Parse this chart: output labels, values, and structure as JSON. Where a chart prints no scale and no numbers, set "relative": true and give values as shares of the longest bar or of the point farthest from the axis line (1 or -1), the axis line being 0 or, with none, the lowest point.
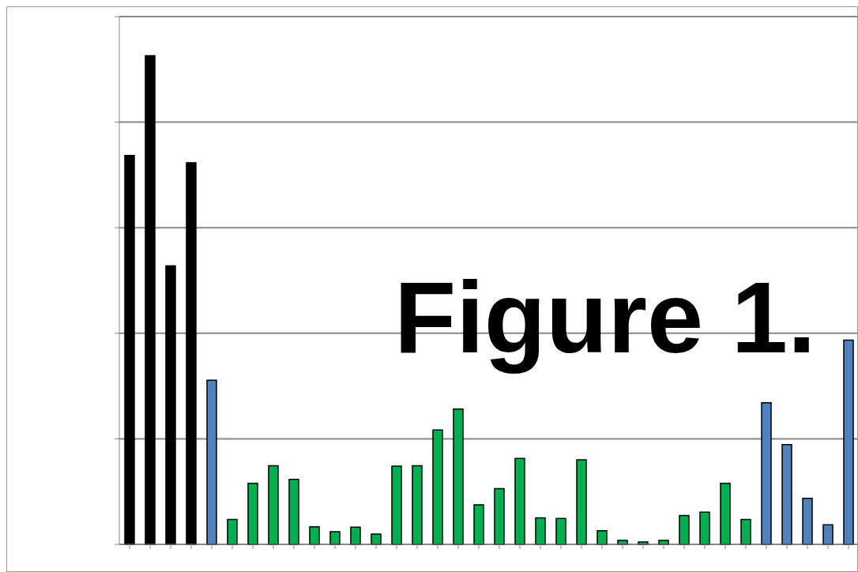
{
  "chart_data": {
    "type": "bar",
    "title": "Figure 1.",
    "relative": true,
    "grid": "y",
    "categories": [
      null,
      null,
      null,
      null,
      null,
      null,
      null,
      null,
      null,
      null,
      null,
      null,
      null,
      null,
      null,
      null,
      null,
      null,
      null,
      null,
      null,
      null,
      null,
      null,
      null,
      null,
      null,
      null,
      null,
      null,
      null,
      null,
      null,
      null,
      null,
      null
    ],
    "values": [
      0.796,
      1,
      0.57,
      0.781,
      0.336,
      0.051,
      0.125,
      0.161,
      0.133,
      0.036,
      0.026,
      0.035,
      0.021,
      0.16,
      0.161,
      0.234,
      0.277,
      0.081,
      0.114,
      0.176,
      0.054,
      0.053,
      0.173,
      0.028,
      0.008,
      0.005,
      0.008,
      0.059,
      0.066,
      0.125,
      0.051,
      0.29,
      0.204,
      0.094,
      0.04,
      0.418
    ],
    "colors": [
      "#000000",
      "#000000",
      "#000000",
      "#000000",
      "#4f81bd",
      "#00b050",
      "#00b050",
      "#00b050",
      "#00b050",
      "#00b050",
      "#00b050",
      "#00b050",
      "#00b050",
      "#00b050",
      "#00b050",
      "#00b050",
      "#00b050",
      "#00b050",
      "#00b050",
      "#00b050",
      "#00b050",
      "#00b050",
      "#00b050",
      "#00b050",
      "#00b050",
      "#00b050",
      "#00b050",
      "#00b050",
      "#00b050",
      "#00b050",
      "#00b050",
      "#4f81bd",
      "#4f81bd",
      "#4f81bd",
      "#4f81bd",
      "#4f81bd"
    ]
  }
}
